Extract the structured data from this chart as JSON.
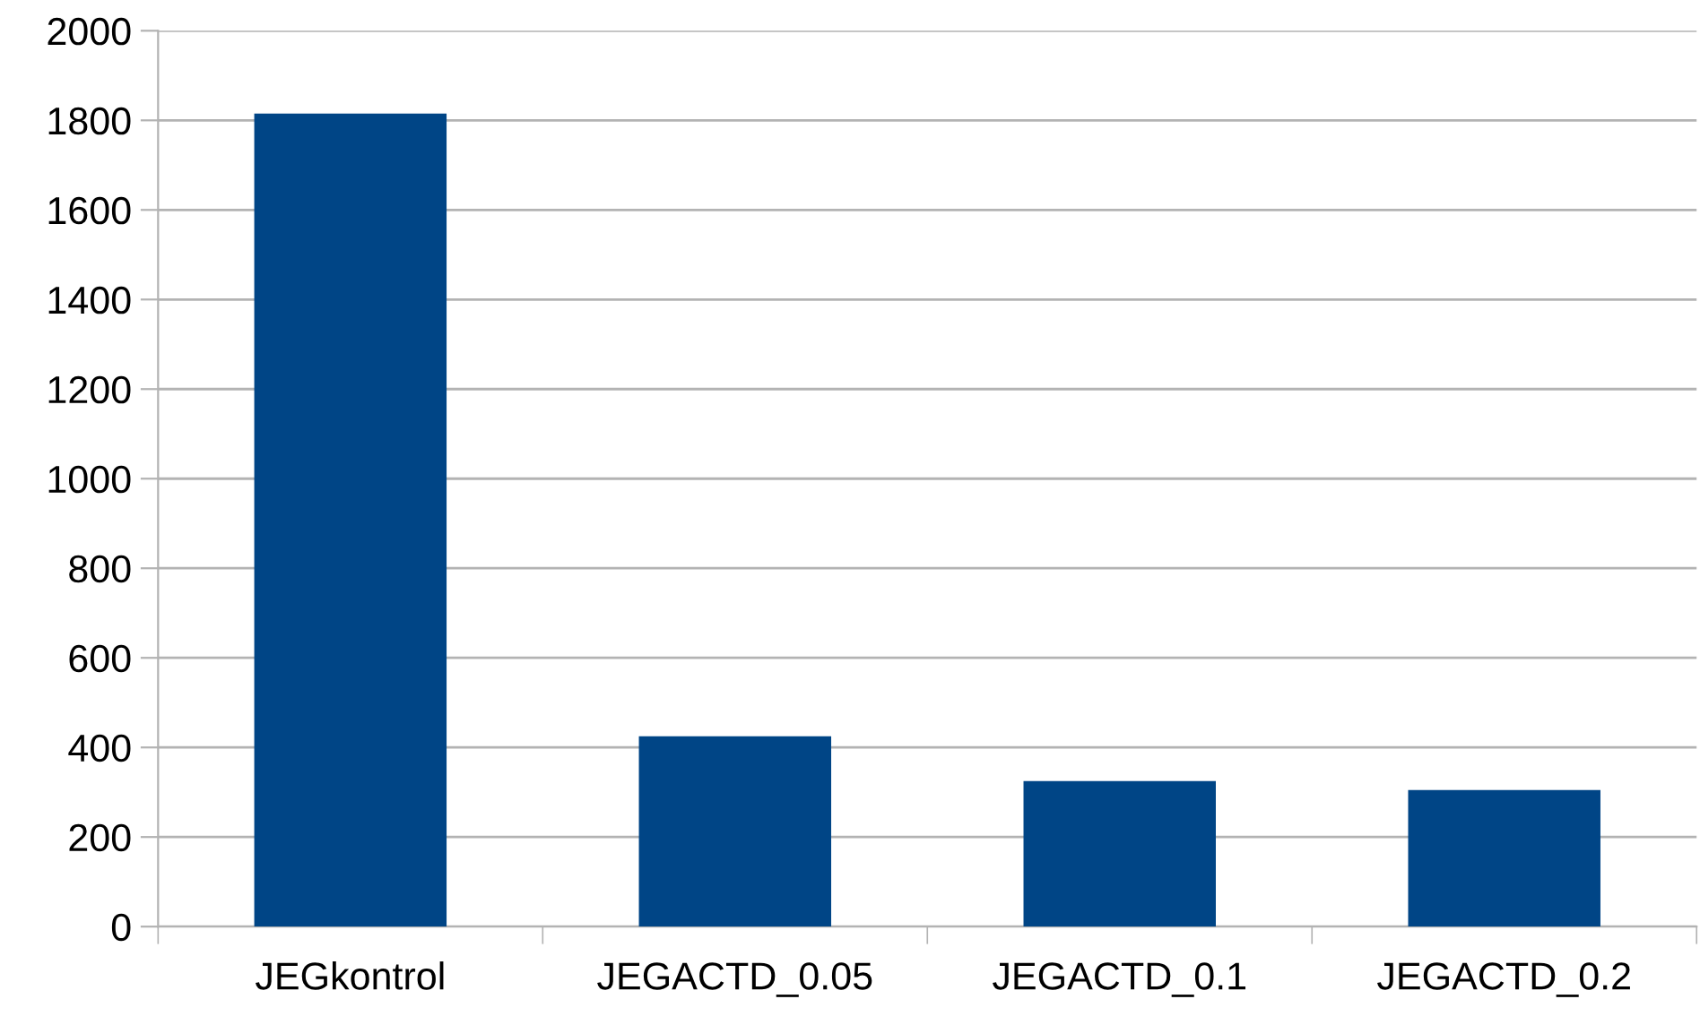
{
  "chart_data": {
    "type": "bar",
    "categories": [
      "JEGkontrol",
      "JEGACTD_0.05",
      "JEGACTD_0.1",
      "JEGACTD_0.2"
    ],
    "values": [
      1815,
      425,
      325,
      305
    ],
    "color": "#004586",
    "ylim": [
      0,
      2000
    ],
    "yticks": [
      0,
      200,
      400,
      600,
      800,
      1000,
      1200,
      1400,
      1600,
      1800,
      2000
    ],
    "grid": "y"
  }
}
